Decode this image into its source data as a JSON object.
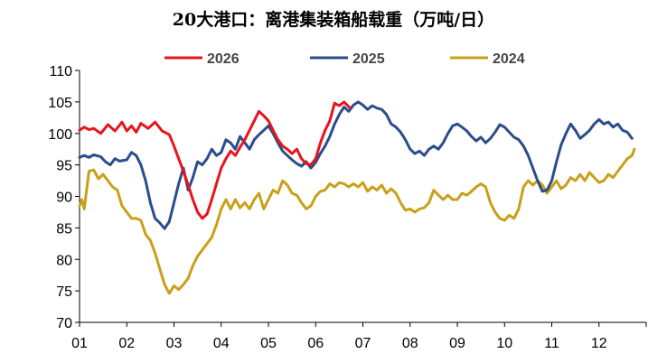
{
  "chart_data": {
    "type": "line",
    "title": "20大港口：离港集装箱船载重（万吨/日）",
    "xlabel": "",
    "ylabel": "",
    "categories": [
      "01",
      "02",
      "03",
      "04",
      "05",
      "06",
      "07",
      "08",
      "09",
      "10",
      "11",
      "12"
    ],
    "ylim": [
      70,
      110
    ],
    "yticks": [
      70,
      75,
      80,
      85,
      90,
      95,
      100,
      105,
      110
    ],
    "grid": false,
    "legend_position": "top",
    "series": [
      {
        "name": "2026",
        "color": "#e8141b",
        "points": [
          [
            1,
            100.5
          ],
          [
            1.1,
            101
          ],
          [
            1.2,
            100.6
          ],
          [
            1.3,
            100.8
          ],
          [
            1.45,
            100
          ],
          [
            1.6,
            101.4
          ],
          [
            1.75,
            100.4
          ],
          [
            1.9,
            101.8
          ],
          [
            2.0,
            100.4
          ],
          [
            2.1,
            101.2
          ],
          [
            2.2,
            100.2
          ],
          [
            2.3,
            101.6
          ],
          [
            2.45,
            100.8
          ],
          [
            2.6,
            101.8
          ],
          [
            2.75,
            100.4
          ],
          [
            2.9,
            99.8
          ],
          [
            3.0,
            98
          ],
          [
            3.1,
            96
          ],
          [
            3.2,
            94
          ],
          [
            3.3,
            91.8
          ],
          [
            3.4,
            89.5
          ],
          [
            3.5,
            87.5
          ],
          [
            3.6,
            86.5
          ],
          [
            3.7,
            87.2
          ],
          [
            3.8,
            89.5
          ],
          [
            3.9,
            92
          ],
          [
            4.0,
            94.5
          ],
          [
            4.1,
            96
          ],
          [
            4.2,
            97.2
          ],
          [
            4.3,
            96.5
          ],
          [
            4.4,
            97.8
          ],
          [
            4.5,
            99
          ],
          [
            4.6,
            100.5
          ],
          [
            4.7,
            102
          ],
          [
            4.8,
            103.5
          ],
          [
            4.9,
            102.8
          ],
          [
            5.0,
            102
          ],
          [
            5.1,
            100.5
          ],
          [
            5.2,
            99
          ],
          [
            5.3,
            98
          ],
          [
            5.4,
            97.5
          ],
          [
            5.5,
            96.8
          ],
          [
            5.6,
            97.5
          ],
          [
            5.7,
            96
          ],
          [
            5.8,
            95.2
          ],
          [
            5.9,
            95
          ],
          [
            6.0,
            96
          ],
          [
            6.1,
            98.5
          ],
          [
            6.2,
            100.5
          ],
          [
            6.3,
            102
          ],
          [
            6.4,
            104.8
          ],
          [
            6.5,
            104.4
          ],
          [
            6.6,
            105
          ],
          [
            6.72,
            104.1
          ]
        ]
      },
      {
        "name": "2025",
        "color": "#2b4d8c",
        "points": [
          [
            1,
            96.2
          ],
          [
            1.1,
            96.5
          ],
          [
            1.2,
            96.2
          ],
          [
            1.3,
            96.6
          ],
          [
            1.45,
            96.3
          ],
          [
            1.55,
            95.5
          ],
          [
            1.65,
            95
          ],
          [
            1.75,
            96
          ],
          [
            1.85,
            95.6
          ],
          [
            2.0,
            95.8
          ],
          [
            2.1,
            97
          ],
          [
            2.2,
            96.5
          ],
          [
            2.3,
            95
          ],
          [
            2.4,
            92.5
          ],
          [
            2.5,
            89
          ],
          [
            2.6,
            86.5
          ],
          [
            2.7,
            85.8
          ],
          [
            2.8,
            84.9
          ],
          [
            2.9,
            86
          ],
          [
            3.0,
            89
          ],
          [
            3.1,
            92
          ],
          [
            3.2,
            94.5
          ],
          [
            3.3,
            91
          ],
          [
            3.4,
            93
          ],
          [
            3.5,
            95.5
          ],
          [
            3.6,
            95
          ],
          [
            3.7,
            96
          ],
          [
            3.8,
            97.5
          ],
          [
            3.9,
            96.5
          ],
          [
            4.0,
            97
          ],
          [
            4.1,
            99
          ],
          [
            4.2,
            98.5
          ],
          [
            4.3,
            97.5
          ],
          [
            4.4,
            99.5
          ],
          [
            4.5,
            98.5
          ],
          [
            4.6,
            97.5
          ],
          [
            4.7,
            99
          ],
          [
            4.8,
            99.8
          ],
          [
            4.9,
            100.5
          ],
          [
            5.0,
            101.2
          ],
          [
            5.1,
            100
          ],
          [
            5.2,
            98.5
          ],
          [
            5.3,
            97.2
          ],
          [
            5.4,
            96.5
          ],
          [
            5.5,
            95.8
          ],
          [
            5.6,
            95.2
          ],
          [
            5.7,
            94.8
          ],
          [
            5.8,
            95.5
          ],
          [
            5.9,
            94.5
          ],
          [
            6.0,
            95.4
          ],
          [
            6.1,
            96.8
          ],
          [
            6.2,
            98
          ],
          [
            6.3,
            99.5
          ],
          [
            6.4,
            101.5
          ],
          [
            6.5,
            103
          ],
          [
            6.6,
            104.2
          ],
          [
            6.7,
            103.5
          ],
          [
            6.8,
            104.5
          ],
          [
            6.9,
            105
          ],
          [
            7.0,
            104.5
          ],
          [
            7.1,
            103.8
          ],
          [
            7.2,
            104.4
          ],
          [
            7.3,
            104
          ],
          [
            7.4,
            103.8
          ],
          [
            7.5,
            103
          ],
          [
            7.6,
            101.5
          ],
          [
            7.7,
            101
          ],
          [
            7.8,
            100.2
          ],
          [
            7.9,
            99
          ],
          [
            8.0,
            97.5
          ],
          [
            8.1,
            96.8
          ],
          [
            8.2,
            97.2
          ],
          [
            8.3,
            96.5
          ],
          [
            8.4,
            97.5
          ],
          [
            8.5,
            98
          ],
          [
            8.6,
            97.5
          ],
          [
            8.7,
            98.5
          ],
          [
            8.8,
            100
          ],
          [
            8.9,
            101.2
          ],
          [
            9.0,
            101.5
          ],
          [
            9.1,
            101
          ],
          [
            9.2,
            100.4
          ],
          [
            9.3,
            99.5
          ],
          [
            9.4,
            98.8
          ],
          [
            9.5,
            99.4
          ],
          [
            9.6,
            98.5
          ],
          [
            9.7,
            99.2
          ],
          [
            9.8,
            100.2
          ],
          [
            9.9,
            101.4
          ],
          [
            10.0,
            101
          ],
          [
            10.1,
            100.2
          ],
          [
            10.2,
            99.4
          ],
          [
            10.3,
            99
          ],
          [
            10.4,
            98
          ],
          [
            10.5,
            96.5
          ],
          [
            10.6,
            94.5
          ],
          [
            10.7,
            92.5
          ],
          [
            10.8,
            90.8
          ],
          [
            10.9,
            91
          ],
          [
            11.0,
            92.5
          ],
          [
            11.1,
            95.5
          ],
          [
            11.2,
            98.2
          ],
          [
            11.3,
            100
          ],
          [
            11.4,
            101.5
          ],
          [
            11.5,
            100.5
          ],
          [
            11.6,
            99.2
          ],
          [
            11.7,
            99.8
          ],
          [
            11.8,
            100.5
          ],
          [
            11.9,
            101.5
          ],
          [
            12.0,
            102.2
          ],
          [
            12.1,
            101.5
          ],
          [
            12.2,
            101.8
          ],
          [
            12.3,
            101
          ],
          [
            12.4,
            101.5
          ],
          [
            12.5,
            100.5
          ],
          [
            12.6,
            100.2
          ],
          [
            12.7,
            99.2
          ]
        ]
      },
      {
        "name": "2024",
        "color": "#c9a01a",
        "points": [
          [
            1,
            88.5
          ],
          [
            1.05,
            89.5
          ],
          [
            1.1,
            88
          ],
          [
            1.15,
            91
          ],
          [
            1.2,
            94
          ],
          [
            1.3,
            94.2
          ],
          [
            1.4,
            92.8
          ],
          [
            1.5,
            93.5
          ],
          [
            1.6,
            92.5
          ],
          [
            1.7,
            91.5
          ],
          [
            1.8,
            91
          ],
          [
            1.9,
            88.5
          ],
          [
            2.0,
            87.5
          ],
          [
            2.1,
            86.5
          ],
          [
            2.2,
            86.5
          ],
          [
            2.3,
            86.2
          ],
          [
            2.4,
            84
          ],
          [
            2.5,
            83
          ],
          [
            2.6,
            81
          ],
          [
            2.7,
            78.5
          ],
          [
            2.8,
            76
          ],
          [
            2.9,
            74.6
          ],
          [
            3.0,
            75.8
          ],
          [
            3.1,
            75.2
          ],
          [
            3.2,
            76
          ],
          [
            3.3,
            77
          ],
          [
            3.4,
            79
          ],
          [
            3.5,
            80.5
          ],
          [
            3.6,
            81.5
          ],
          [
            3.7,
            82.5
          ],
          [
            3.8,
            83.5
          ],
          [
            3.9,
            85.5
          ],
          [
            4.0,
            88
          ],
          [
            4.1,
            89.5
          ],
          [
            4.2,
            88
          ],
          [
            4.3,
            89.5
          ],
          [
            4.4,
            88.2
          ],
          [
            4.5,
            89
          ],
          [
            4.6,
            88
          ],
          [
            4.7,
            89.5
          ],
          [
            4.8,
            90.5
          ],
          [
            4.9,
            88
          ],
          [
            5.0,
            89.5
          ],
          [
            5.1,
            91
          ],
          [
            5.2,
            90.5
          ],
          [
            5.3,
            92.5
          ],
          [
            5.4,
            91.8
          ],
          [
            5.5,
            90.5
          ],
          [
            5.6,
            90.2
          ],
          [
            5.7,
            89
          ],
          [
            5.8,
            88
          ],
          [
            5.9,
            88.5
          ],
          [
            6.0,
            90
          ],
          [
            6.1,
            90.8
          ],
          [
            6.2,
            91
          ],
          [
            6.3,
            92
          ],
          [
            6.4,
            91.5
          ],
          [
            6.5,
            92.2
          ],
          [
            6.6,
            92
          ],
          [
            6.7,
            91.5
          ],
          [
            6.8,
            92
          ],
          [
            6.9,
            91.5
          ],
          [
            7.0,
            92.2
          ],
          [
            7.1,
            90.8
          ],
          [
            7.2,
            91.5
          ],
          [
            7.3,
            91
          ],
          [
            7.4,
            91.8
          ],
          [
            7.5,
            90.5
          ],
          [
            7.6,
            91.2
          ],
          [
            7.7,
            90.5
          ],
          [
            7.8,
            89
          ],
          [
            7.9,
            87.8
          ],
          [
            8.0,
            88
          ],
          [
            8.1,
            87.5
          ],
          [
            8.2,
            88
          ],
          [
            8.3,
            88.2
          ],
          [
            8.4,
            89
          ],
          [
            8.5,
            91
          ],
          [
            8.6,
            90.2
          ],
          [
            8.7,
            89.5
          ],
          [
            8.8,
            90.2
          ],
          [
            8.9,
            89.5
          ],
          [
            9.0,
            89.5
          ],
          [
            9.1,
            90.5
          ],
          [
            9.2,
            90.2
          ],
          [
            9.3,
            90.8
          ],
          [
            9.4,
            91.5
          ],
          [
            9.5,
            92
          ],
          [
            9.6,
            91.5
          ],
          [
            9.7,
            89
          ],
          [
            9.8,
            87.5
          ],
          [
            9.9,
            86.5
          ],
          [
            10.0,
            86.2
          ],
          [
            10.1,
            87
          ],
          [
            10.2,
            86.5
          ],
          [
            10.3,
            88
          ],
          [
            10.4,
            91.5
          ],
          [
            10.5,
            92.5
          ],
          [
            10.6,
            91.8
          ],
          [
            10.7,
            92.5
          ],
          [
            10.8,
            91.8
          ],
          [
            10.9,
            90.5
          ],
          [
            11.0,
            91.5
          ],
          [
            11.1,
            92.5
          ],
          [
            11.2,
            91.2
          ],
          [
            11.3,
            91.8
          ],
          [
            11.4,
            93
          ],
          [
            11.5,
            92.5
          ],
          [
            11.6,
            93.5
          ],
          [
            11.7,
            92.5
          ],
          [
            11.8,
            93.8
          ],
          [
            11.9,
            93
          ],
          [
            12.0,
            92.2
          ],
          [
            12.1,
            92.5
          ],
          [
            12.2,
            93.5
          ],
          [
            12.3,
            93
          ],
          [
            12.4,
            94
          ],
          [
            12.5,
            95
          ],
          [
            12.6,
            96
          ],
          [
            12.7,
            96.5
          ],
          [
            12.75,
            97.5
          ]
        ]
      }
    ]
  }
}
